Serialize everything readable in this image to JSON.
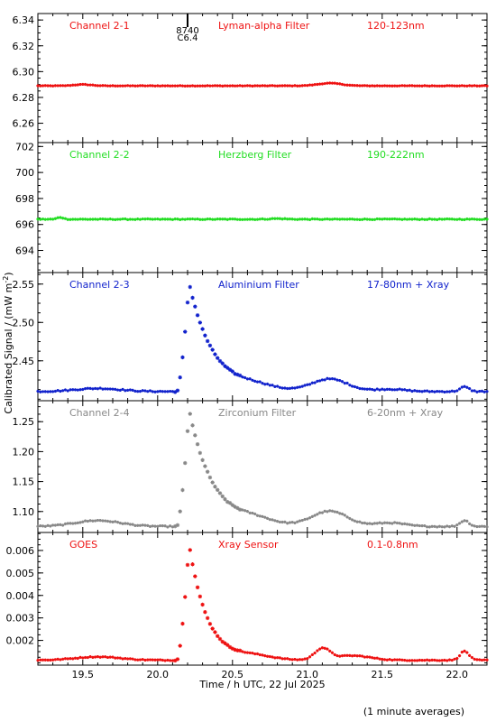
{
  "figure": {
    "ylabel": "Calibrated Signal / (mW m",
    "ylabel_sup": "-2",
    "ylabel_close": ")",
    "xlabel": "Time / h UTC, 22 Jul 2025",
    "footnote": "(1 minute averages)",
    "xticks": [
      19.5,
      20.0,
      20.5,
      21.0,
      21.5,
      22.0
    ],
    "xlim": [
      19.2,
      22.2
    ],
    "flare_marker": {
      "x": 20.2,
      "label_top": "8740",
      "label_bottom": "C6.4"
    }
  },
  "chart_data": [
    {
      "type": "scatter",
      "panel": "Channel 2-1",
      "labels": [
        "Channel 2-1",
        "Lyman-alpha Filter",
        "120-123nm"
      ],
      "color": "#ee1111",
      "ylim": [
        6.245,
        6.345
      ],
      "yticks": [
        6.26,
        6.28,
        6.3,
        6.32,
        6.34
      ],
      "ytick_decimals": 2,
      "baseline": 6.289,
      "bumps": [
        [
          19.5,
          0.001,
          0.06
        ],
        [
          21.15,
          0.002,
          0.08
        ]
      ],
      "flare_amp": 0,
      "flare_tau": 0.2,
      "noise": 0.0002
    },
    {
      "type": "scatter",
      "panel": "Channel 2-2",
      "labels": [
        "Channel 2-2",
        "Herzberg Filter",
        "190-222nm"
      ],
      "color": "#22dd22",
      "ylim": [
        692.3,
        702.3
      ],
      "yticks": [
        694,
        696,
        698,
        700,
        702
      ],
      "ytick_decimals": 0,
      "baseline": 696.4,
      "bumps": [
        [
          19.35,
          0.15,
          0.02
        ],
        [
          20.8,
          0.05,
          0.05
        ]
      ],
      "flare_amp": 0,
      "flare_tau": 0.2,
      "noise": 0.03
    },
    {
      "type": "scatter",
      "panel": "Channel 2-3",
      "labels": [
        "Channel 2-3",
        "Aluminium Filter",
        "17-80nm + Xray"
      ],
      "color": "#1122cc",
      "ylim": [
        2.398,
        2.565
      ],
      "yticks": [
        2.45,
        2.5,
        2.55
      ],
      "ytick_decimals": 2,
      "baseline": 2.41,
      "bumps": [
        [
          19.6,
          0.004,
          0.15
        ],
        [
          20.65,
          0.005,
          0.12
        ],
        [
          21.15,
          0.016,
          0.12
        ],
        [
          21.55,
          0.003,
          0.1
        ],
        [
          22.05,
          0.006,
          0.03
        ]
      ],
      "flare_amp": 0.142,
      "flare_tau": 0.16,
      "noise": 0.0008
    },
    {
      "type": "scatter",
      "panel": "Channel 2-4",
      "labels": [
        "Channel 2-4",
        "Zirconium Filter",
        "6-20nm + Xray"
      ],
      "color": "#888888",
      "ylim": [
        1.065,
        1.285
      ],
      "yticks": [
        1.1,
        1.15,
        1.2,
        1.25
      ],
      "ytick_decimals": 2,
      "baseline": 1.075,
      "bumps": [
        [
          19.6,
          0.01,
          0.15
        ],
        [
          20.65,
          0.008,
          0.12
        ],
        [
          21.15,
          0.025,
          0.12
        ],
        [
          21.55,
          0.006,
          0.1
        ],
        [
          22.05,
          0.01,
          0.03
        ]
      ],
      "flare_amp": 0.195,
      "flare_tau": 0.16,
      "noise": 0.001
    },
    {
      "type": "scatter",
      "panel": "GOES",
      "labels": [
        "GOES",
        "Xray Sensor",
        "0.1-0.8nm"
      ],
      "color": "#ee1111",
      "ylim": [
        0.0009,
        0.0068
      ],
      "yticks": [
        0.002,
        0.003,
        0.004,
        0.005,
        0.006
      ],
      "ytick_decimals": 3,
      "baseline": 0.00112,
      "bumps": [
        [
          19.6,
          0.00015,
          0.15
        ],
        [
          20.65,
          0.00015,
          0.12
        ],
        [
          21.1,
          0.0005,
          0.05
        ],
        [
          21.3,
          0.0002,
          0.12
        ],
        [
          22.05,
          0.0004,
          0.03
        ]
      ],
      "flare_amp": 0.0052,
      "flare_tau": 0.12,
      "noise": 2e-05
    }
  ]
}
